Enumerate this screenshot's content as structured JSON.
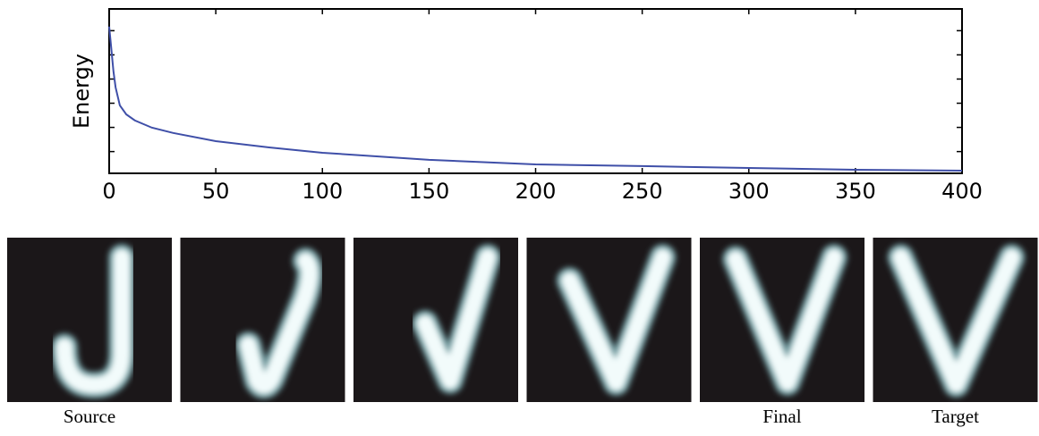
{
  "chart_data": {
    "type": "line",
    "ylabel": "Energy",
    "x": [
      0,
      1,
      2,
      3,
      5,
      8,
      12,
      20,
      30,
      50,
      75,
      100,
      150,
      200,
      250,
      300,
      350,
      400
    ],
    "series": [
      {
        "color": "#3f4fa8",
        "values": [
          5.17,
          4.25,
          3.32,
          2.66,
          1.91,
          1.54,
          1.29,
          0.99,
          0.77,
          0.43,
          0.17,
          -0.05,
          -0.34,
          -0.53,
          -0.6,
          -0.68,
          -0.75,
          -0.79
        ]
      }
    ],
    "xlim": [
      0,
      400
    ],
    "xticks": [
      0,
      50,
      100,
      150,
      200,
      250,
      300,
      350,
      400
    ],
    "ylim": [
      -0.9,
      5.9
    ],
    "yticks": [
      0,
      1,
      2,
      3,
      4,
      5
    ]
  },
  "panels": {
    "labels": [
      "Source",
      null,
      null,
      null,
      "Final",
      "Target"
    ]
  }
}
